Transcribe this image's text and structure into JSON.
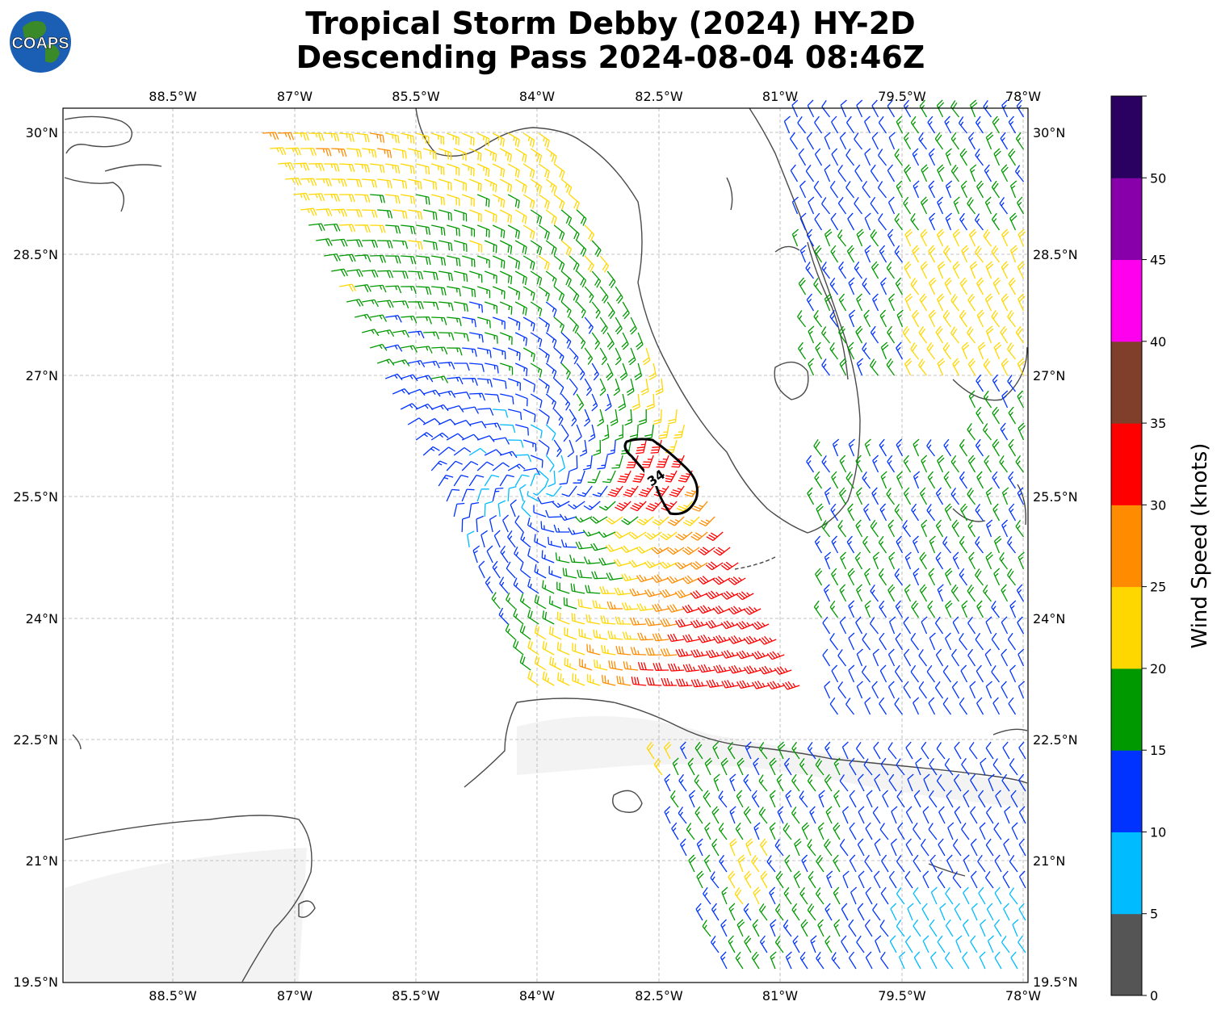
{
  "title": {
    "line1": "Tropical Storm Debby (2024) HY-2D",
    "line2": "Descending Pass 2024-08-04 08:46Z"
  },
  "logo": {
    "text": "COAPS",
    "icon": "globe-icon"
  },
  "axes": {
    "lon_labels": [
      "88.5°W",
      "87°W",
      "85.5°W",
      "84°W",
      "82.5°W",
      "81°W",
      "79.5°W",
      "78°W"
    ],
    "lat_labels": [
      "30°N",
      "28.5°N",
      "27°N",
      "25.5°N",
      "24°N",
      "22.5°N",
      "21°N",
      "19.5°N"
    ]
  },
  "contour": {
    "label": "34"
  },
  "colorbar": {
    "title": "Wind Speed (knots)",
    "ticks": [
      "0",
      "5",
      "10",
      "15",
      "20",
      "25",
      "30",
      "35",
      "40",
      "45",
      "50"
    ],
    "colors": [
      "#555555",
      "#00bbff",
      "#0033ff",
      "#009900",
      "#ffd700",
      "#ff8c00",
      "#ff0000",
      "#7f3f2a",
      "#ff00ee",
      "#8800aa",
      "#2a0060"
    ]
  },
  "chart_data": {
    "type": "wind-barb-map",
    "lon_range": [
      -89.85,
      -77.9
    ],
    "lat_range": [
      19.5,
      30.3
    ],
    "grid": true,
    "units": "knots",
    "contour_level": 34,
    "color_scale_knots": [
      0,
      5,
      10,
      15,
      20,
      25,
      30,
      35,
      40,
      45,
      50,
      55
    ]
  }
}
